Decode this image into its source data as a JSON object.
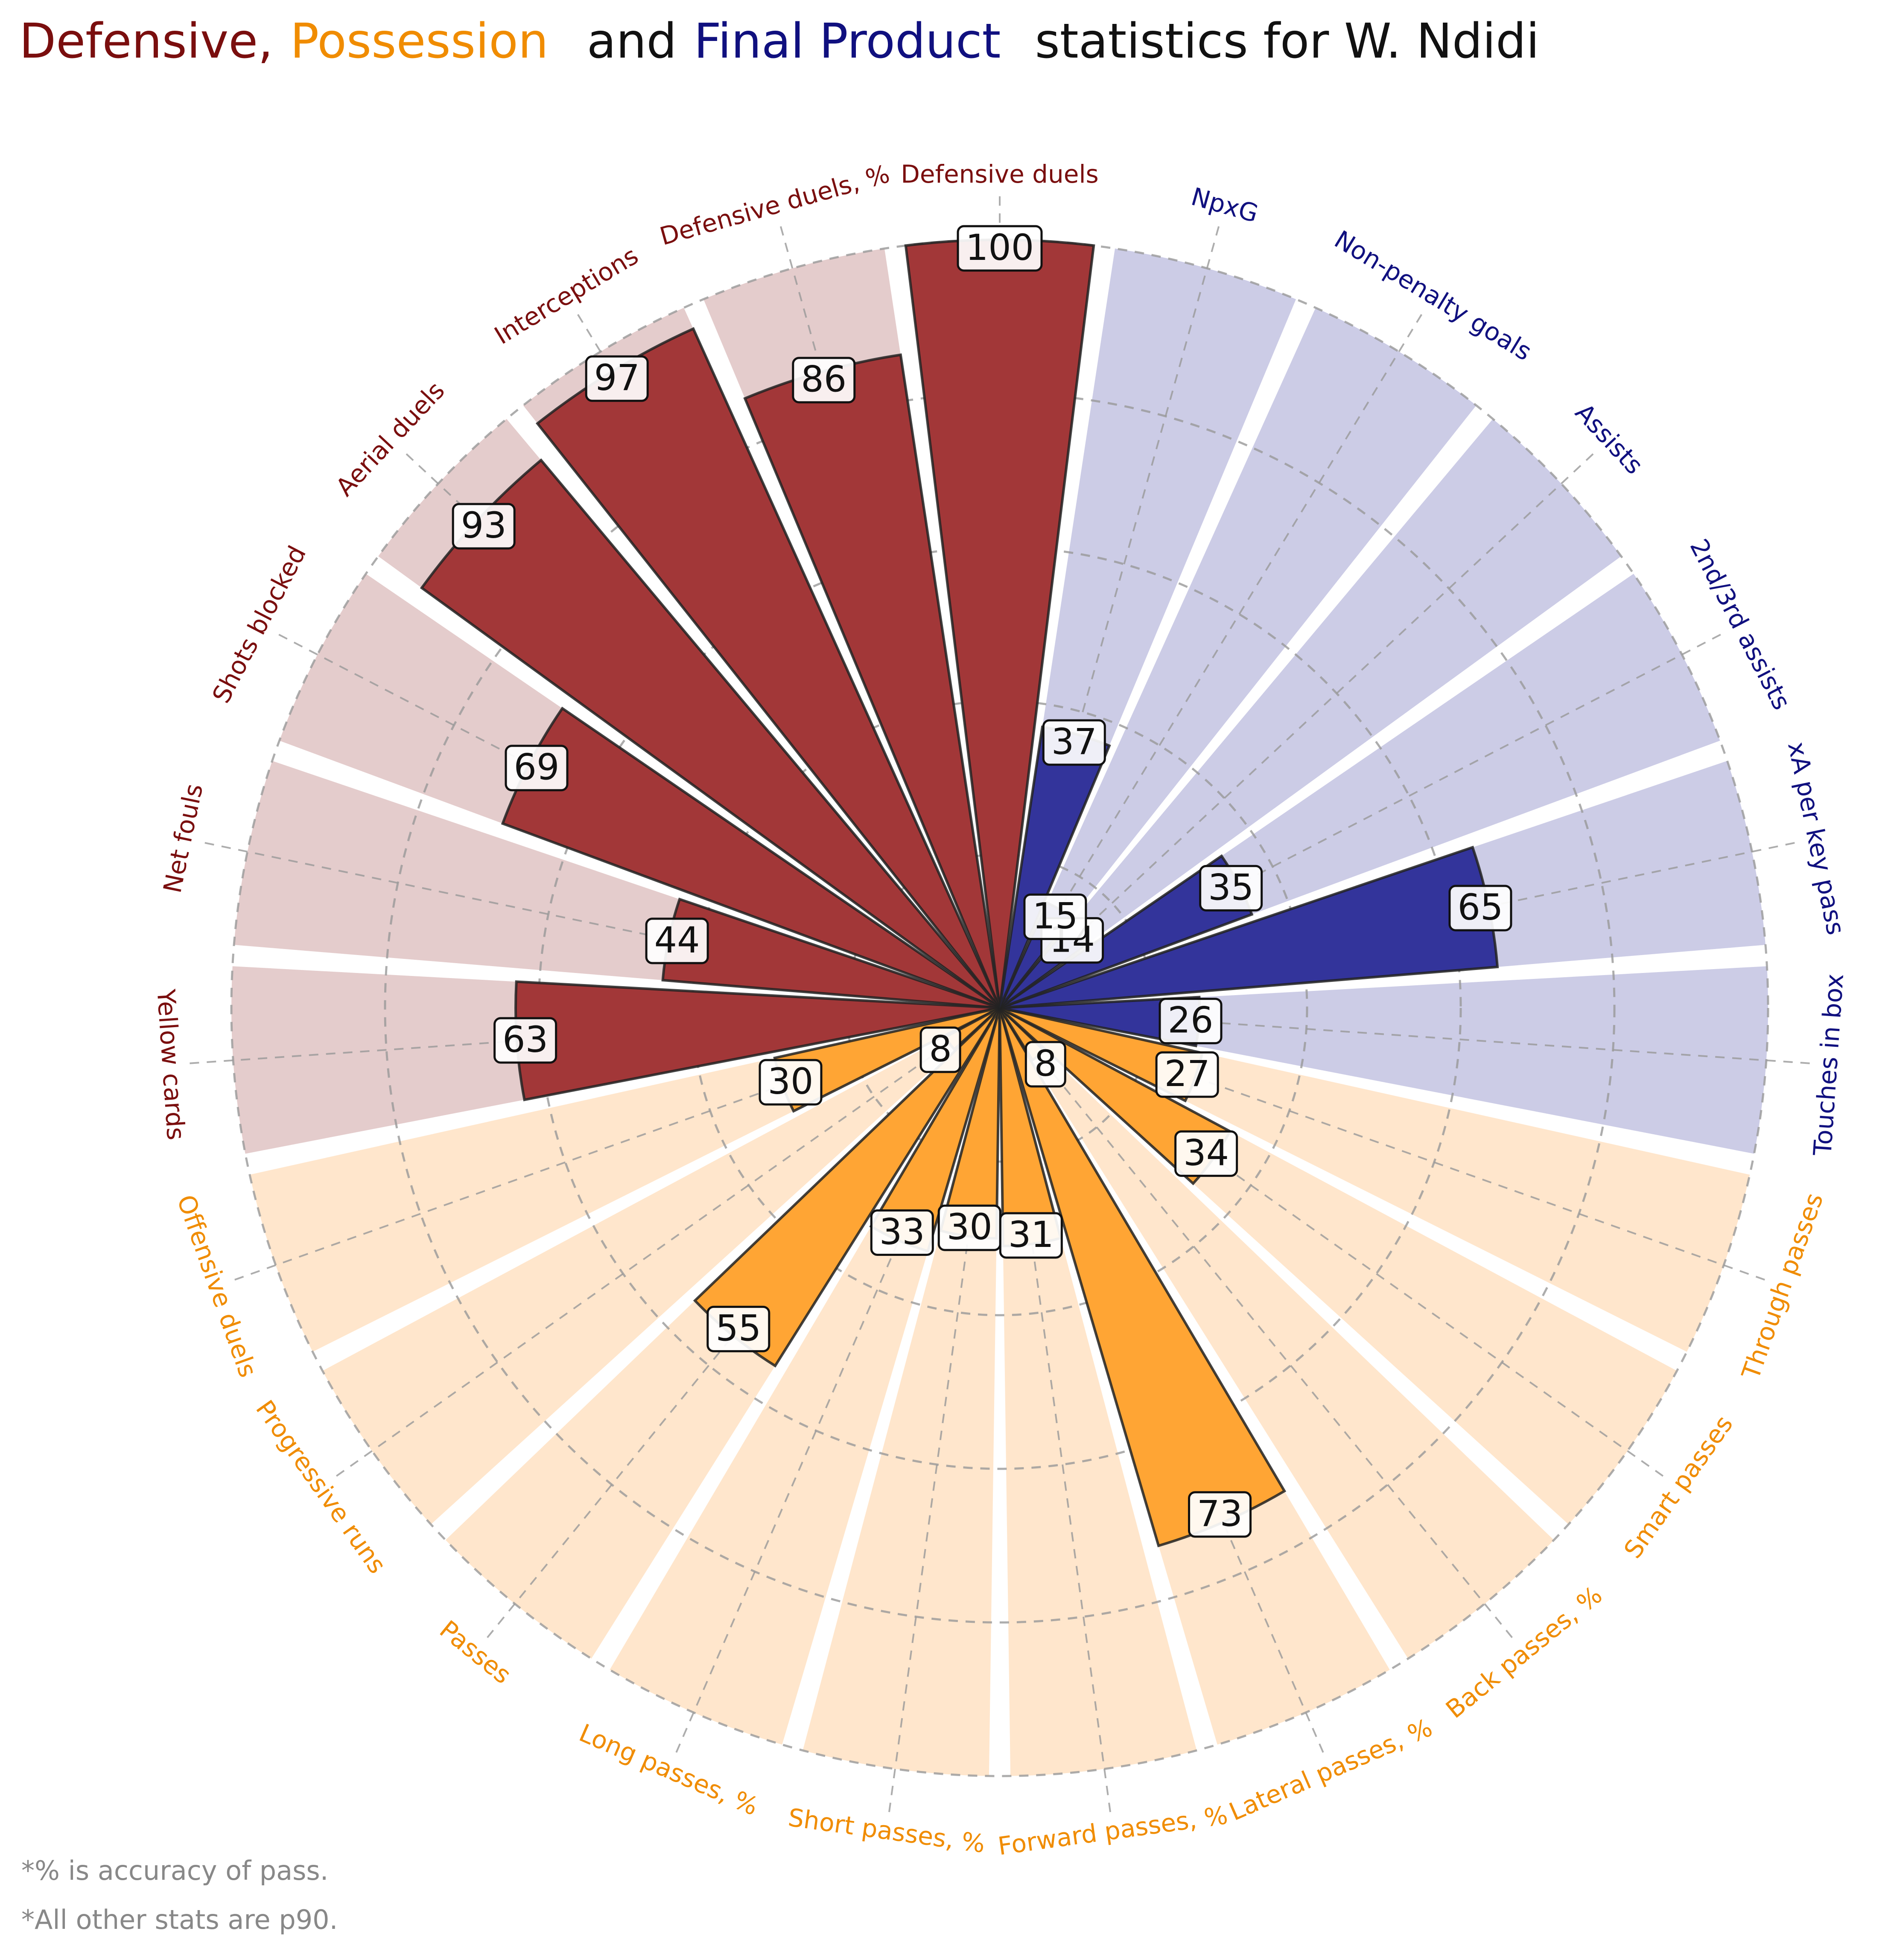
{
  "title": {
    "part1": "Defensive,",
    "part2": "Possession",
    "part3": "and",
    "part4": "Final Product",
    "part5": "statistics for W. Ndidi"
  },
  "notes": [
    "*% is accuracy of pass.",
    "*All other stats are p90."
  ],
  "colors": {
    "defensive": "#a23738",
    "defensive_bg": "#e4cccc",
    "defensive_text": "#7a0e0e",
    "possession": "#ffa534",
    "possession_bg": "#ffe6cc",
    "possession_text": "#f08c00",
    "final": "#33349b",
    "final_bg": "#cccce6",
    "final_text": "#10107f"
  },
  "chart_data": {
    "type": "polar-bar",
    "range": [
      0,
      100
    ],
    "grid": true,
    "groups": [
      {
        "name": "Defensive",
        "color_key": "defensive"
      },
      {
        "name": "Possession",
        "color_key": "possession"
      },
      {
        "name": "Final Product",
        "color_key": "final"
      }
    ],
    "stats": [
      {
        "label": "Defensive duels",
        "value": 100,
        "group": "Defensive"
      },
      {
        "label": "Defensive duels, %",
        "value": 86,
        "group": "Defensive"
      },
      {
        "label": "Interceptions",
        "value": 97,
        "group": "Defensive"
      },
      {
        "label": "Aerial duels",
        "value": 93,
        "group": "Defensive"
      },
      {
        "label": "Shots blocked",
        "value": 69,
        "group": "Defensive"
      },
      {
        "label": "Net fouls",
        "value": 44,
        "group": "Defensive"
      },
      {
        "label": "Yellow cards",
        "value": 63,
        "group": "Defensive"
      },
      {
        "label": "Offensive duels",
        "value": 30,
        "group": "Possession"
      },
      {
        "label": "Progressive runs",
        "value": 8,
        "group": "Possession"
      },
      {
        "label": "Passes",
        "value": 55,
        "group": "Possession"
      },
      {
        "label": "Long passes, %",
        "value": 33,
        "group": "Possession"
      },
      {
        "label": "Short passes, %",
        "value": 30,
        "group": "Possession"
      },
      {
        "label": "Forward passes, %",
        "value": 31,
        "group": "Possession"
      },
      {
        "label": "Lateral passes, %",
        "value": 73,
        "group": "Possession"
      },
      {
        "label": "Back passes, %",
        "value": 8,
        "group": "Possession"
      },
      {
        "label": "Smart passes",
        "value": 34,
        "group": "Possession"
      },
      {
        "label": "Through passes",
        "value": 27,
        "group": "Possession"
      },
      {
        "label": "Touches in box",
        "value": 26,
        "group": "Final Product"
      },
      {
        "label": "xA per key pass",
        "value": 65,
        "group": "Final Product"
      },
      {
        "label": "2nd/3rd assists",
        "value": 35,
        "group": "Final Product"
      },
      {
        "label": "Assists",
        "value": 14,
        "group": "Final Product"
      },
      {
        "label": "Non-penalty goals",
        "value": 15,
        "group": "Final Product"
      },
      {
        "label": "NpxG",
        "value": 37,
        "group": "Final Product"
      }
    ]
  }
}
